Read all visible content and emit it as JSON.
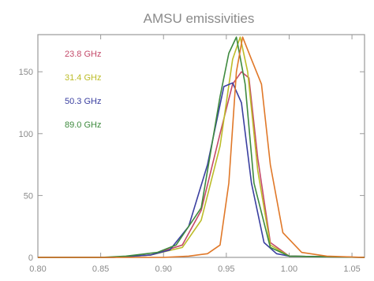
{
  "chart_data": {
    "type": "line",
    "title": "AMSU emissivities",
    "xlabel": "",
    "ylabel": "",
    "xlim": [
      0.8,
      1.06
    ],
    "ylim": [
      0,
      180
    ],
    "grid": false,
    "legend": "top-left",
    "x_ticks": [
      0.8,
      0.85,
      0.9,
      0.95,
      1.0,
      1.05
    ],
    "x_tick_labels": [
      "0.80",
      "0.85",
      "0.90",
      "0.95",
      "1.00",
      "1.05"
    ],
    "y_ticks": [
      0,
      50,
      100,
      150
    ],
    "y_tick_labels": [
      "0",
      "50",
      "100",
      "150"
    ],
    "series": [
      {
        "name": "23.8 GHz",
        "color": "#c44a6a",
        "x": [
          0.8,
          0.86,
          0.89,
          0.915,
          0.93,
          0.945,
          0.955,
          0.962,
          0.968,
          0.975,
          0.985,
          1.0,
          1.06
        ],
        "y": [
          0,
          0,
          2,
          10,
          38,
          100,
          140,
          150,
          145,
          80,
          12,
          1,
          0
        ]
      },
      {
        "name": "31.4 GHz",
        "color": "#bcbc28",
        "x": [
          0.8,
          0.86,
          0.89,
          0.915,
          0.93,
          0.945,
          0.955,
          0.961,
          0.967,
          0.975,
          0.985,
          1.0,
          1.06
        ],
        "y": [
          0,
          0,
          2,
          8,
          30,
          90,
          160,
          178,
          150,
          70,
          10,
          1,
          0
        ]
      },
      {
        "name": "50.3 GHz",
        "color": "#3a3fa0",
        "x": [
          0.8,
          0.86,
          0.89,
          0.905,
          0.92,
          0.935,
          0.948,
          0.955,
          0.962,
          0.97,
          0.98,
          0.99,
          1.0,
          1.06
        ],
        "y": [
          0,
          0,
          2,
          6,
          25,
          75,
          138,
          141,
          125,
          60,
          12,
          3,
          1,
          0
        ]
      },
      {
        "name": "89.0 GHz",
        "color": "#3e8a3e",
        "x": [
          0.8,
          0.85,
          0.87,
          0.895,
          0.91,
          0.93,
          0.945,
          0.952,
          0.958,
          0.965,
          0.972,
          0.985,
          1.0,
          1.06
        ],
        "y": [
          0,
          0,
          1,
          4,
          10,
          40,
          130,
          165,
          178,
          140,
          60,
          8,
          1,
          0
        ]
      },
      {
        "name": "",
        "color": "#e07828",
        "x": [
          0.8,
          0.9,
          0.92,
          0.935,
          0.945,
          0.952,
          0.958,
          0.963,
          0.97,
          0.978,
          0.985,
          0.995,
          1.01,
          1.03,
          1.06
        ],
        "y": [
          0,
          0,
          1,
          3,
          10,
          60,
          150,
          178,
          160,
          140,
          75,
          20,
          4,
          1,
          0
        ]
      }
    ]
  }
}
